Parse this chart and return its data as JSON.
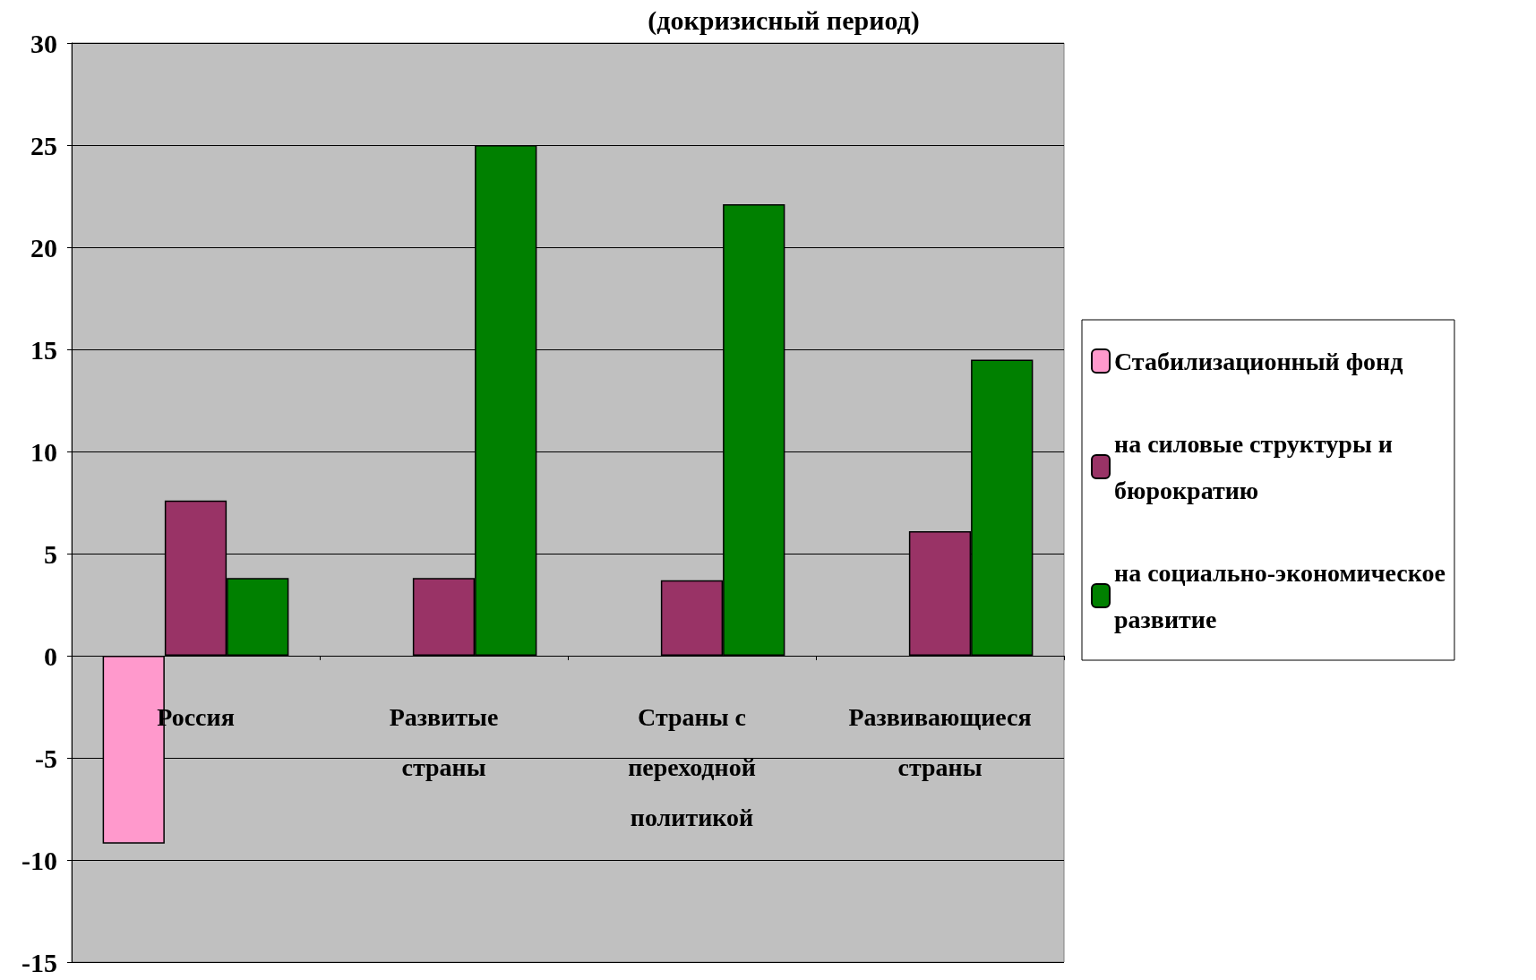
{
  "chart_data": {
    "type": "bar",
    "title": "(докризисный период)",
    "categories": [
      "Россия",
      "Развитые страны",
      "Страны с переходной политикой",
      "Развивающиеся страны"
    ],
    "series": [
      {
        "name": "Стабилизационный фонд",
        "color": "#ff99cc",
        "values": [
          -9.2,
          null,
          null,
          null
        ]
      },
      {
        "name": "на силовые структуры и бюрократию",
        "color": "#993366",
        "values": [
          7.6,
          3.8,
          3.7,
          6.1
        ]
      },
      {
        "name": "на социально-экономическое развитие",
        "color": "#008000",
        "values": [
          3.8,
          25,
          22.1,
          14.5
        ]
      }
    ],
    "ylim": [
      -15,
      30
    ],
    "yticks": [
      -15,
      -10,
      -5,
      0,
      5,
      10,
      15,
      20,
      25,
      30
    ],
    "grid": "y",
    "legend": "right"
  }
}
